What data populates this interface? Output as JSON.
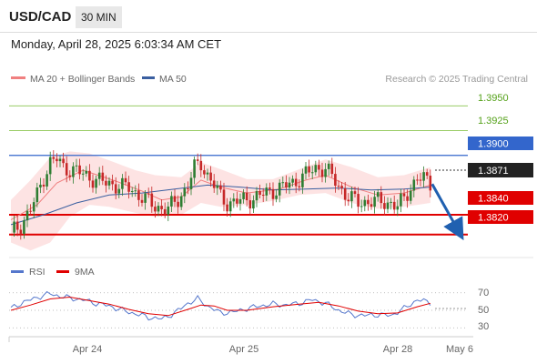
{
  "header": {
    "pair": "USD/CAD",
    "timeframe": "30 MIN",
    "datetime": "Monday, April 28, 2025 6:03:34 AM CET"
  },
  "colors": {
    "bollinger": "#f08080",
    "ma50": "#3a5fa0",
    "band_fill": "#fde0e0",
    "up_candle": "#2e7d32",
    "down_candle": "#c62828",
    "resistance_green": "#99cc66",
    "resistance_blue": "#3366cc",
    "support_red": "#e00000",
    "arrow": "#2060b0",
    "rsi": "#5577cc",
    "rsi_ma": "#e00000"
  },
  "chart_data": [
    {
      "type": "candlestick",
      "legend": [
        {
          "name": "MA 20 + Bollinger Bands",
          "color": "#f08080"
        },
        {
          "name": "MA 50",
          "color": "#3a5fa0"
        }
      ],
      "legend_placement": "top-left",
      "credit": "Research © 2025 Trading Central",
      "ylim": [
        1.3795,
        1.3965
      ],
      "x_labels": [
        "Apr 24",
        "Apr 25",
        "Apr 28",
        "May 6"
      ],
      "current_price": "1.3871",
      "levels": [
        {
          "label": "1.3950",
          "value": 1.395,
          "style": "resistance",
          "color": "#99cc66"
        },
        {
          "label": "1.3925",
          "value": 1.3925,
          "style": "resistance",
          "color": "#99cc66"
        },
        {
          "label": "1.3900",
          "value": 1.39,
          "style": "pivot",
          "color": "#3366cc"
        },
        {
          "label": "1.3840",
          "value": 1.384,
          "style": "support",
          "color": "#e00000"
        },
        {
          "label": "1.3820",
          "value": 1.382,
          "style": "support",
          "color": "#e00000"
        }
      ],
      "close_path": [
        [
          0,
          1.3822
        ],
        [
          3,
          1.383
        ],
        [
          6,
          1.3845
        ],
        [
          8,
          1.386
        ],
        [
          10,
          1.3878
        ],
        [
          12,
          1.3893
        ],
        [
          14,
          1.3896
        ],
        [
          16,
          1.3888
        ],
        [
          20,
          1.3884
        ],
        [
          24,
          1.3878
        ],
        [
          28,
          1.3873
        ],
        [
          32,
          1.387
        ],
        [
          36,
          1.3867
        ],
        [
          40,
          1.3858
        ],
        [
          44,
          1.3848
        ],
        [
          48,
          1.3846
        ],
        [
          51,
          1.3855
        ],
        [
          54,
          1.387
        ],
        [
          56,
          1.3887
        ],
        [
          58,
          1.3892
        ],
        [
          60,
          1.388
        ],
        [
          62,
          1.387
        ],
        [
          64,
          1.3858
        ],
        [
          66,
          1.3852
        ],
        [
          70,
          1.3854
        ],
        [
          74,
          1.3857
        ],
        [
          78,
          1.3862
        ],
        [
          82,
          1.3867
        ],
        [
          86,
          1.3872
        ],
        [
          90,
          1.3881
        ],
        [
          93,
          1.3887
        ],
        [
          96,
          1.3887
        ],
        [
          98,
          1.3878
        ],
        [
          100,
          1.3869
        ],
        [
          103,
          1.3858
        ],
        [
          106,
          1.3852
        ],
        [
          110,
          1.3854
        ],
        [
          113,
          1.3853
        ],
        [
          116,
          1.3852
        ],
        [
          118,
          1.3848
        ],
        [
          120,
          1.3856
        ],
        [
          122,
          1.3868
        ],
        [
          124,
          1.3877
        ],
        [
          126,
          1.3876
        ],
        [
          128,
          1.3871
        ]
      ],
      "ma20_path": [
        [
          0,
          1.3835
        ],
        [
          8,
          1.385
        ],
        [
          14,
          1.3872
        ],
        [
          22,
          1.3885
        ],
        [
          32,
          1.3874
        ],
        [
          40,
          1.3864
        ],
        [
          46,
          1.3855
        ],
        [
          52,
          1.3858
        ],
        [
          58,
          1.3875
        ],
        [
          64,
          1.3868
        ],
        [
          72,
          1.3862
        ],
        [
          82,
          1.3866
        ],
        [
          90,
          1.3875
        ],
        [
          96,
          1.388
        ],
        [
          104,
          1.3868
        ],
        [
          112,
          1.386
        ],
        [
          120,
          1.3862
        ],
        [
          128,
          1.387
        ]
      ],
      "ma50_path": [
        [
          0,
          1.383
        ],
        [
          10,
          1.384
        ],
        [
          20,
          1.3852
        ],
        [
          30,
          1.386
        ],
        [
          40,
          1.3862
        ],
        [
          50,
          1.3866
        ],
        [
          60,
          1.387
        ],
        [
          70,
          1.3868
        ],
        [
          80,
          1.3865
        ],
        [
          90,
          1.3866
        ],
        [
          100,
          1.3867
        ],
        [
          110,
          1.3865
        ],
        [
          120,
          1.3866
        ],
        [
          128,
          1.3868
        ]
      ],
      "band_upper": [
        [
          0,
          1.3855
        ],
        [
          6,
          1.3875
        ],
        [
          12,
          1.3898
        ],
        [
          18,
          1.3904
        ],
        [
          24,
          1.3902
        ],
        [
          30,
          1.3895
        ],
        [
          38,
          1.3885
        ],
        [
          44,
          1.388
        ],
        [
          52,
          1.3878
        ],
        [
          58,
          1.3893
        ],
        [
          64,
          1.3886
        ],
        [
          72,
          1.3876
        ],
        [
          80,
          1.3876
        ],
        [
          88,
          1.3886
        ],
        [
          96,
          1.3896
        ],
        [
          104,
          1.3888
        ],
        [
          112,
          1.3878
        ],
        [
          120,
          1.388
        ],
        [
          128,
          1.3888
        ]
      ],
      "band_lower": [
        [
          0,
          1.3812
        ],
        [
          6,
          1.3804
        ],
        [
          12,
          1.3812
        ],
        [
          18,
          1.3838
        ],
        [
          24,
          1.385
        ],
        [
          30,
          1.3848
        ],
        [
          38,
          1.3842
        ],
        [
          44,
          1.3838
        ],
        [
          52,
          1.384
        ],
        [
          58,
          1.3852
        ],
        [
          64,
          1.3848
        ],
        [
          72,
          1.385
        ],
        [
          80,
          1.3854
        ],
        [
          88,
          1.386
        ],
        [
          96,
          1.3862
        ],
        [
          104,
          1.3852
        ],
        [
          112,
          1.3846
        ],
        [
          120,
          1.3848
        ],
        [
          128,
          1.3852
        ]
      ],
      "forecast_arrow": {
        "from": [
          128,
          1.3871
        ],
        "to": [
          136,
          1.3822
        ]
      }
    },
    {
      "type": "line",
      "legend": [
        {
          "name": "RSI",
          "color": "#5577cc"
        },
        {
          "name": "9MA",
          "color": "#e00000"
        }
      ],
      "ylim": [
        24,
        77
      ],
      "y_labels": [
        "70",
        "50",
        "30"
      ],
      "y_ticks": [
        70,
        50,
        30
      ],
      "current_rsi": 59,
      "rsi_path": [
        [
          0,
          52
        ],
        [
          3,
          58
        ],
        [
          6,
          62
        ],
        [
          9,
          66
        ],
        [
          12,
          69
        ],
        [
          15,
          66
        ],
        [
          18,
          64
        ],
        [
          22,
          62
        ],
        [
          26,
          58
        ],
        [
          30,
          55
        ],
        [
          34,
          50
        ],
        [
          38,
          46
        ],
        [
          42,
          42
        ],
        [
          46,
          40
        ],
        [
          50,
          47
        ],
        [
          54,
          58
        ],
        [
          57,
          63
        ],
        [
          60,
          55
        ],
        [
          64,
          47
        ],
        [
          68,
          48
        ],
        [
          72,
          52
        ],
        [
          76,
          55
        ],
        [
          80,
          57
        ],
        [
          84,
          56
        ],
        [
          88,
          58
        ],
        [
          92,
          62
        ],
        [
          96,
          58
        ],
        [
          100,
          50
        ],
        [
          104,
          45
        ],
        [
          108,
          44
        ],
        [
          112,
          45
        ],
        [
          116,
          44
        ],
        [
          120,
          52
        ],
        [
          124,
          62
        ],
        [
          128,
          59
        ]
      ],
      "rsi_ma_path": [
        [
          0,
          50
        ],
        [
          6,
          56
        ],
        [
          12,
          63
        ],
        [
          18,
          65
        ],
        [
          24,
          61
        ],
        [
          30,
          57
        ],
        [
          36,
          51
        ],
        [
          42,
          46
        ],
        [
          48,
          44
        ],
        [
          54,
          51
        ],
        [
          58,
          56
        ],
        [
          62,
          55
        ],
        [
          66,
          50
        ],
        [
          72,
          50
        ],
        [
          80,
          54
        ],
        [
          88,
          57
        ],
        [
          94,
          59
        ],
        [
          100,
          55
        ],
        [
          106,
          49
        ],
        [
          112,
          46
        ],
        [
          118,
          47
        ],
        [
          124,
          54
        ],
        [
          128,
          58
        ]
      ]
    }
  ]
}
